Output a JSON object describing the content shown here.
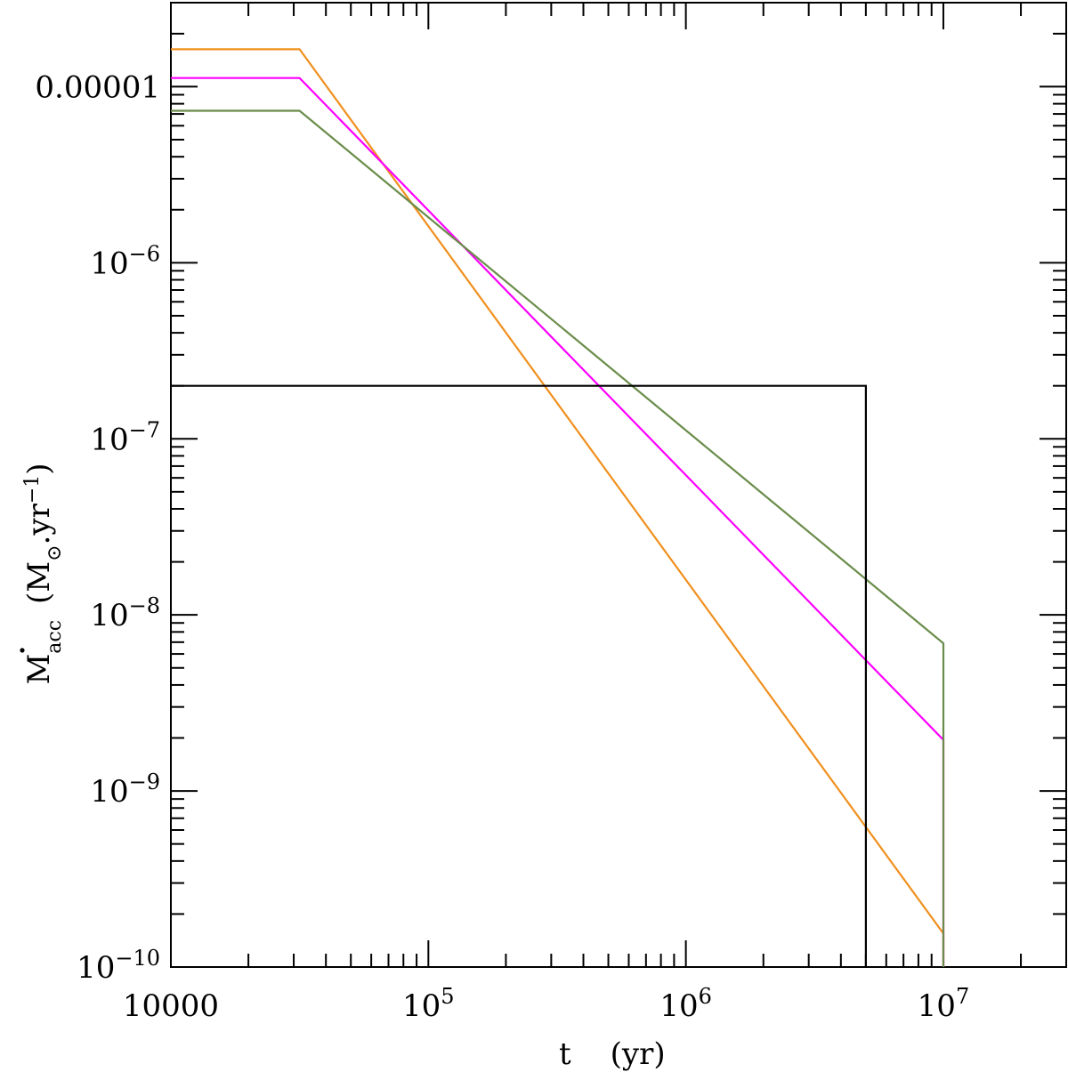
{
  "chart_data": {
    "type": "line",
    "xscale": "log",
    "yscale": "log",
    "xlim": [
      10000,
      30000000
    ],
    "ylim": [
      1e-10,
      3e-05
    ],
    "xlabel": {
      "main": "t",
      "unit": "(yr)"
    },
    "ylabel": {
      "main": "M",
      "sub": "acc",
      "unit_open": "(M",
      "sun": "⊙",
      "unit_mid": ".yr",
      "sup": "−1",
      "unit_close": ")"
    },
    "x_ticks": [
      {
        "value": 10000,
        "base": "10000",
        "exp": ""
      },
      {
        "value": 100000,
        "base": "10",
        "exp": "5"
      },
      {
        "value": 1000000,
        "base": "10",
        "exp": "6"
      },
      {
        "value": 10000000,
        "base": "10",
        "exp": "7"
      }
    ],
    "y_ticks": [
      {
        "value": 1e-10,
        "base": "10",
        "exp": "−10"
      },
      {
        "value": 1e-09,
        "base": "10",
        "exp": "−9"
      },
      {
        "value": 1e-08,
        "base": "10",
        "exp": "−8"
      },
      {
        "value": 1e-07,
        "base": "10",
        "exp": "−7"
      },
      {
        "value": 1e-06,
        "base": "10",
        "exp": "−6"
      },
      {
        "value": 1e-05,
        "base": "0.00001",
        "exp": ""
      }
    ],
    "grid": false,
    "legend": "none",
    "series": [
      {
        "color": "#f0901e",
        "x": [
          10000,
          31600,
          10000000,
          10000000
        ],
        "y": [
          1.63e-05,
          1.63e-05,
          1.55e-10,
          1e-10
        ]
      },
      {
        "color": "#ff00ff",
        "x": [
          10000,
          31600,
          10000000,
          10000000
        ],
        "y": [
          1.12e-05,
          1.12e-05,
          1.95e-09,
          1e-10
        ]
      },
      {
        "color": "#6a8c4a",
        "x": [
          10000,
          31600,
          10000000,
          10000000
        ],
        "y": [
          7.3e-06,
          7.3e-06,
          6.9e-09,
          1e-10
        ]
      },
      {
        "color": "#000000",
        "x": [
          10000,
          5000000,
          5000000
        ],
        "y": [
          2e-07,
          2e-07,
          1e-10
        ]
      }
    ]
  }
}
